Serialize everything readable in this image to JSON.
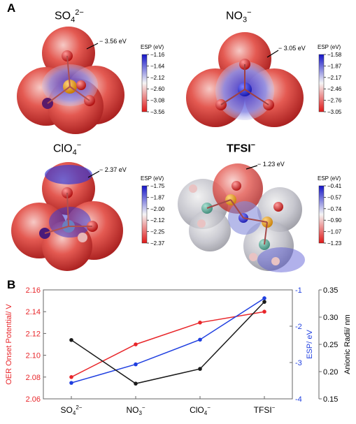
{
  "panel_a": {
    "label": "A",
    "molecules": [
      {
        "id": "so4",
        "name_base": "SO",
        "name_sub": "4",
        "name_sup": "2−",
        "value_label": "− 3.56 eV",
        "colorbar": {
          "title": "ESP (eV)",
          "ticks": [
            "−1.16",
            "−1.64",
            "−2.12",
            "−2.60",
            "−3.08",
            "−3.56"
          ]
        }
      },
      {
        "id": "no3",
        "name_base": "NO",
        "name_sub": "3",
        "name_sup": "−",
        "value_label": "− 3.05 eV",
        "colorbar": {
          "title": "ESP (eV)",
          "ticks": [
            "−1.58",
            "−1.87",
            "−2.17",
            "−2.46",
            "−2.76",
            "−3.05"
          ]
        }
      },
      {
        "id": "clo4",
        "name_base": "ClO",
        "name_sub": "4",
        "name_sup": "−",
        "value_label": "− 2.37 eV",
        "colorbar": {
          "title": "ESP (eV)",
          "ticks": [
            "−1.75",
            "−1.87",
            "−2.00",
            "−2.12",
            "−2.25",
            "−2.37"
          ]
        }
      },
      {
        "id": "tfsi",
        "name_base": "TFSI",
        "name_sub": "",
        "name_sup": "−",
        "value_label": "− 1.23 eV",
        "colorbar": {
          "title": "ESP (eV)",
          "ticks": [
            "−0.41",
            "−0.57",
            "−0.74",
            "−0.90",
            "−1.07",
            "−1.23"
          ]
        }
      }
    ]
  },
  "panel_b": {
    "label": "B"
  },
  "colors": {
    "oer": "#e8262a",
    "esp": "#1f3fe0",
    "radii": "#1a1a1a",
    "esp_high": "#2a2ad8",
    "esp_mid": "#f2f2f2",
    "esp_low": "#e02020"
  },
  "chart_data": {
    "type": "line",
    "categories": [
      {
        "base": "SO",
        "sub": "4",
        "sup": "2−"
      },
      {
        "base": "NO",
        "sub": "3",
        "sup": "−"
      },
      {
        "base": "ClO",
        "sub": "4",
        "sup": "−"
      },
      {
        "base": "TFSI",
        "sub": "",
        "sup": "−"
      }
    ],
    "axes": {
      "left": {
        "label": "OER Onset Potential/ V",
        "ylim": [
          2.06,
          2.16
        ],
        "ticks": [
          "2.06",
          "2.08",
          "2.10",
          "2.12",
          "2.14",
          "2.16"
        ]
      },
      "right1": {
        "label": "ESP/ eV",
        "ylim": [
          -4,
          -1
        ],
        "ticks": [
          "-1",
          "-2",
          "-3",
          "-4"
        ]
      },
      "right2": {
        "label": "Anionic Radii/ nm",
        "ylim": [
          0.15,
          0.35
        ],
        "ticks": [
          "0.35",
          "0.30",
          "0.25",
          "0.20",
          "0.15"
        ]
      }
    },
    "series": [
      {
        "axis": "left",
        "color": "#e8262a",
        "values": [
          2.08,
          2.11,
          2.13,
          2.14
        ]
      },
      {
        "axis": "right1",
        "color": "#1f3fe0",
        "values": [
          -3.56,
          -3.05,
          -2.37,
          -1.23
        ]
      },
      {
        "axis": "right2",
        "color": "#1a1a1a",
        "values": [
          0.258,
          0.178,
          0.205,
          0.328
        ]
      }
    ],
    "grid": false
  }
}
